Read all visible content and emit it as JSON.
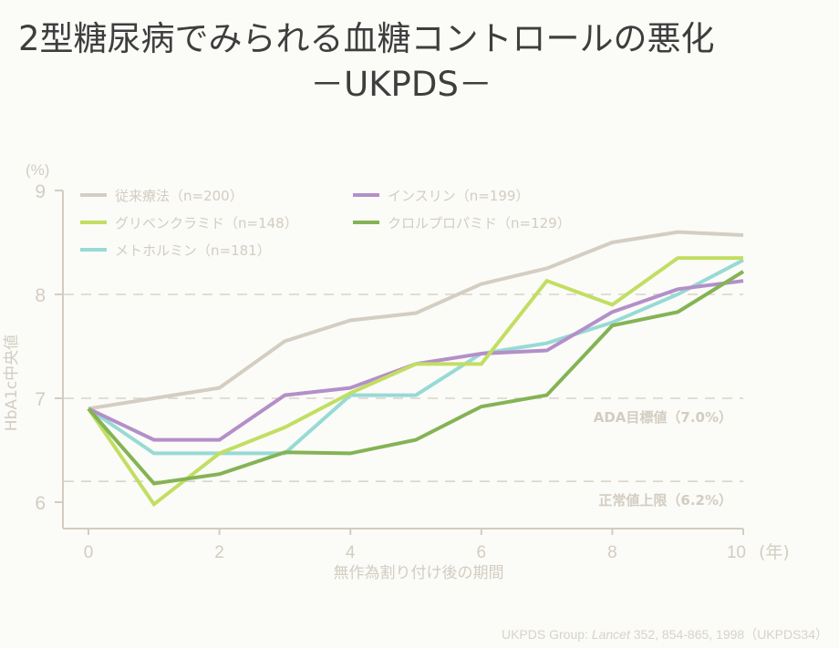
{
  "chart_data": {
    "type": "line",
    "title": "2型糖尿病でみられる血糖コントロールの悪化",
    "subtitle": "－UKPDS－",
    "xlabel": "無作為割り付け後の期間",
    "xunit": "(年)",
    "ylabel": "HbA1c中央値",
    "yunit": "(%)",
    "x": [
      0,
      1,
      2,
      3,
      4,
      5,
      6,
      7,
      8,
      9,
      10
    ],
    "xlim": [
      0,
      10
    ],
    "ylim": [
      5.8,
      9
    ],
    "xticks": [
      0,
      2,
      4,
      6,
      8,
      10
    ],
    "yticks": [
      6,
      7,
      8,
      9
    ],
    "legend_position": "top-left",
    "series": [
      {
        "name": "従来療法（n=200）",
        "color": "#d4cec2",
        "values": [
          6.9,
          7.0,
          7.1,
          7.55,
          7.75,
          7.82,
          8.1,
          8.25,
          8.5,
          8.6,
          8.57
        ]
      },
      {
        "name": "インスリン（n=199）",
        "color": "#b48fc8",
        "values": [
          6.9,
          6.6,
          6.6,
          7.03,
          7.1,
          7.33,
          7.43,
          7.46,
          7.83,
          8.05,
          8.13
        ]
      },
      {
        "name": "グリベンクラミド（n=148）",
        "color": "#c2de62",
        "values": [
          6.9,
          5.98,
          6.47,
          6.72,
          7.05,
          7.33,
          7.33,
          8.13,
          7.9,
          8.35,
          8.35
        ]
      },
      {
        "name": "クロルプロパミド（n=129）",
        "color": "#84b354",
        "values": [
          6.9,
          6.18,
          6.27,
          6.48,
          6.47,
          6.6,
          6.92,
          7.03,
          7.7,
          7.83,
          8.22
        ]
      },
      {
        "name": "メトホルミン（n=181）",
        "color": "#97dad6",
        "values": [
          6.9,
          6.47,
          6.47,
          6.47,
          7.03,
          7.03,
          7.43,
          7.53,
          7.73,
          8.0,
          8.33
        ]
      }
    ],
    "reference_lines": [
      {
        "value": 8.0,
        "label": ""
      },
      {
        "value": 7.0,
        "label": "ADA目標値（7.0%）"
      },
      {
        "value": 6.2,
        "label": "正常値上限（6.2%）"
      }
    ]
  },
  "citation": {
    "authors": "UKPDS Group: ",
    "journal": "Lancet",
    "details": " 352, 854-865, 1998（UKPDS34）"
  }
}
